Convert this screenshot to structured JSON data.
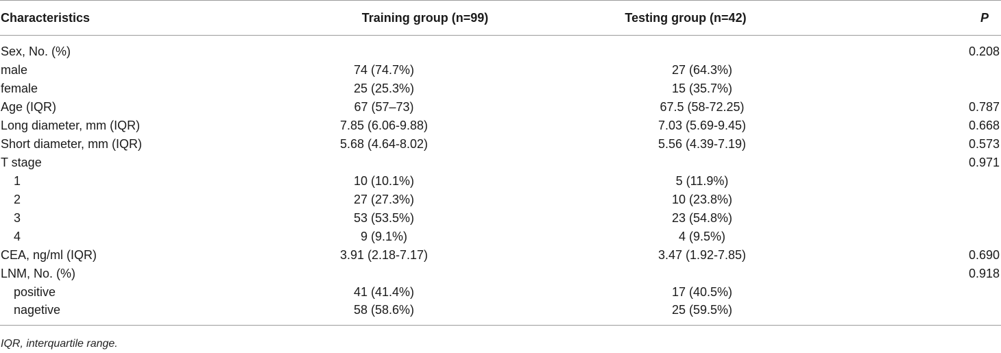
{
  "table": {
    "headers": {
      "characteristics": "Characteristics",
      "training": "Training group (n=99)",
      "testing": "Testing group (n=42)",
      "p": "P"
    },
    "rows": [
      {
        "label": "Sex, No. (%)",
        "training": "",
        "testing": "",
        "p": "0.208",
        "indent": false
      },
      {
        "label": "male",
        "training": "74 (74.7%)",
        "testing": "27 (64.3%)",
        "p": "",
        "indent": false
      },
      {
        "label": "female",
        "training": "25 (25.3%)",
        "testing": "15 (35.7%)",
        "p": "",
        "indent": false
      },
      {
        "label": "Age (IQR)",
        "training": "67 (57–73)",
        "testing": "67.5 (58-72.25)",
        "p": "0.787",
        "indent": false
      },
      {
        "label": "Long diameter, mm (IQR)",
        "training": "7.85 (6.06-9.88)",
        "testing": "7.03 (5.69-9.45)",
        "p": "0.668",
        "indent": false
      },
      {
        "label": "Short diameter, mm (IQR)",
        "training": "5.68 (4.64-8.02)",
        "testing": "5.56 (4.39-7.19)",
        "p": "0.573",
        "indent": false
      },
      {
        "label": "T stage",
        "training": "",
        "testing": "",
        "p": "0.971",
        "indent": false
      },
      {
        "label": "1",
        "training": "10 (10.1%)",
        "testing": "5 (11.9%)",
        "p": "",
        "indent": true
      },
      {
        "label": "2",
        "training": "27 (27.3%)",
        "testing": "10 (23.8%)",
        "p": "",
        "indent": true
      },
      {
        "label": "3",
        "training": "53 (53.5%)",
        "testing": "23 (54.8%)",
        "p": "",
        "indent": true
      },
      {
        "label": "4",
        "training": "9 (9.1%)",
        "testing": "4 (9.5%)",
        "p": "",
        "indent": true
      },
      {
        "label": "CEA, ng/ml (IQR)",
        "training": "3.91 (2.18-7.17)",
        "testing": "3.47 (1.92-7.85)",
        "p": "0.690",
        "indent": false
      },
      {
        "label": "LNM, No. (%)",
        "training": "",
        "testing": "",
        "p": "0.918",
        "indent": false
      },
      {
        "label": "positive",
        "training": "41 (41.4%)",
        "testing": "17 (40.5%)",
        "p": "",
        "indent": true
      },
      {
        "label": "nagetive",
        "training": "58 (58.6%)",
        "testing": "25 (59.5%)",
        "p": "",
        "indent": true
      }
    ]
  },
  "footnote": "IQR, interquartile range."
}
